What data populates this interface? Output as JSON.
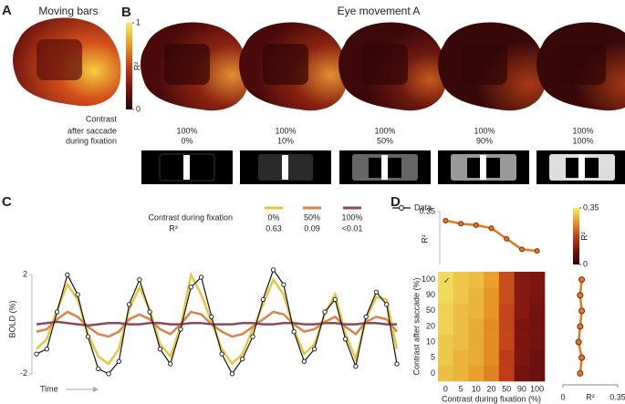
{
  "panel_labels": [
    "A",
    "B",
    "C",
    "D"
  ],
  "panel_a": {
    "title": "Moving bars",
    "colorbar": {
      "label": "R²",
      "lim": [
        0,
        1
      ],
      "ticks": [
        0,
        1
      ],
      "colorscale": [
        "#2a0508",
        "#7a1410",
        "#c2401a",
        "#e69a26",
        "#f5ee6a"
      ]
    }
  },
  "panel_b": {
    "title": "Eye movement A",
    "contrast_label": "Contrast",
    "row_labels": [
      "after saccade",
      "during fixation"
    ],
    "columns": [
      [
        "100%",
        "0%"
      ],
      [
        "100%",
        "10%"
      ],
      [
        "100%",
        "50%"
      ],
      [
        "100%",
        "90%"
      ],
      [
        "100%",
        "100%"
      ]
    ]
  },
  "chart_data": [
    {
      "type": "line",
      "legend_title": "Contrast during fixation",
      "r2_label": "R²",
      "ylabel": "BOLD (%)",
      "xlabel": "Time",
      "categories": [
        null,
        null,
        null,
        null,
        null,
        null,
        null,
        null,
        null,
        null,
        null,
        null,
        null,
        null,
        null,
        null,
        null,
        null,
        null,
        null,
        null,
        null,
        null,
        null,
        null,
        null,
        null,
        null,
        null,
        null,
        null,
        null,
        null,
        null,
        null,
        null
      ],
      "ylim": [
        -2.3,
        2.6
      ],
      "yticks": [
        -2,
        2
      ],
      "series": [
        {
          "name": "0%",
          "r2": 0.63,
          "color": "#e8c640",
          "values": [
            -1.0,
            -0.6,
            0.6,
            1.6,
            1.0,
            -0.4,
            -1.3,
            -1.6,
            -1.0,
            0.6,
            1.5,
            0.6,
            -0.8,
            -1.3,
            -0.1,
            2.0,
            1.2,
            0.1,
            -1.0,
            -1.6,
            -1.2,
            -0.2,
            0.8,
            1.8,
            1.2,
            -0.2,
            -1.2,
            -0.8,
            0.4,
            1.2,
            -0.4,
            -1.4,
            0.2,
            1.1,
            1.0,
            -1.0
          ]
        },
        {
          "name": "50%",
          "r2": 0.09,
          "color": "#d9824a",
          "values": [
            -0.3,
            -0.2,
            0.2,
            0.5,
            0.3,
            -0.1,
            -0.4,
            -0.5,
            -0.3,
            0.2,
            0.4,
            0.2,
            -0.2,
            -0.4,
            0.0,
            0.5,
            0.4,
            0.0,
            -0.3,
            -0.5,
            -0.4,
            -0.1,
            0.2,
            0.5,
            0.4,
            0.0,
            -0.3,
            -0.2,
            0.1,
            0.3,
            -0.1,
            -0.4,
            0.1,
            0.3,
            0.2,
            -0.3
          ]
        },
        {
          "name": "100%",
          "r2": "<0.01",
          "color": "#8a4a5e",
          "values": [
            0.0,
            0.05,
            0.1,
            0.05,
            0,
            -0.05,
            0,
            0.05,
            0.05,
            0,
            0,
            0.05,
            0.05,
            0,
            0,
            0.05,
            0.05,
            0,
            0,
            0,
            0.05,
            0.05,
            0,
            0,
            0.05,
            0.05,
            0,
            0,
            0.05,
            0.05,
            0,
            0,
            0.05,
            0.05,
            0,
            0
          ]
        },
        {
          "name": "Data",
          "color": "#111111",
          "markers": true,
          "values": [
            -1.2,
            -1.0,
            0.5,
            2.0,
            1.2,
            -0.5,
            -1.8,
            -2.0,
            -1.5,
            0.8,
            1.8,
            0.5,
            -1.0,
            -1.6,
            -0.2,
            1.5,
            1.9,
            0.3,
            -1.2,
            -2.0,
            -1.4,
            -0.5,
            1.0,
            2.2,
            1.6,
            -0.3,
            -1.5,
            -1.0,
            0.5,
            1.0,
            -0.6,
            -1.7,
            0.3,
            1.3,
            0.8,
            -1.6
          ]
        }
      ]
    },
    {
      "type": "line",
      "ylabel": "R²",
      "categories": [
        null,
        null,
        null,
        null,
        null,
        null,
        null
      ],
      "values": [
        0.29,
        0.27,
        0.26,
        0.24,
        0.17,
        0.1,
        0.09
      ],
      "color": "#e07b1a",
      "marker_color": "#8a1a10",
      "ylim": [
        0,
        0.35
      ],
      "yticks": [
        0.35
      ]
    },
    {
      "type": "heatmap",
      "xlabel": "Contrast during fixation (%)",
      "ylabel": "Contrast after saccade (%)",
      "annotation": "✓",
      "x": [
        0,
        5,
        10,
        20,
        50,
        90,
        100
      ],
      "y": [
        0,
        5,
        10,
        20,
        50,
        90,
        100
      ],
      "z": [
        [
          0.3,
          0.29,
          0.27,
          0.24,
          0.17,
          0.08,
          0.07
        ],
        [
          0.31,
          0.29,
          0.28,
          0.25,
          0.17,
          0.09,
          0.07
        ],
        [
          0.31,
          0.3,
          0.28,
          0.25,
          0.18,
          0.09,
          0.08
        ],
        [
          0.32,
          0.3,
          0.28,
          0.25,
          0.18,
          0.09,
          0.08
        ],
        [
          0.32,
          0.3,
          0.29,
          0.26,
          0.18,
          0.1,
          0.08
        ],
        [
          0.33,
          0.31,
          0.29,
          0.26,
          0.19,
          0.1,
          0.09
        ],
        [
          0.33,
          0.31,
          0.3,
          0.27,
          0.19,
          0.1,
          0.09
        ]
      ],
      "colorbar": {
        "label": "R²",
        "lim": [
          0,
          0.35
        ],
        "ticks": [
          0,
          0.35
        ],
        "colorscale": [
          "#2a0508",
          "#7a1410",
          "#c2401a",
          "#e69a26",
          "#f5ee6a"
        ]
      }
    },
    {
      "type": "line",
      "orientation": "vertical",
      "xlabel": "R²",
      "categories": [
        null,
        null,
        null,
        null,
        null,
        null,
        null
      ],
      "values": [
        0.11,
        0.12,
        0.1,
        0.11,
        0.12,
        0.11,
        0.12
      ],
      "color": "#e07b1a",
      "marker_color": "#8a1a10",
      "xlim": [
        0,
        0.35
      ],
      "xticks": [
        0,
        0.35
      ]
    }
  ]
}
